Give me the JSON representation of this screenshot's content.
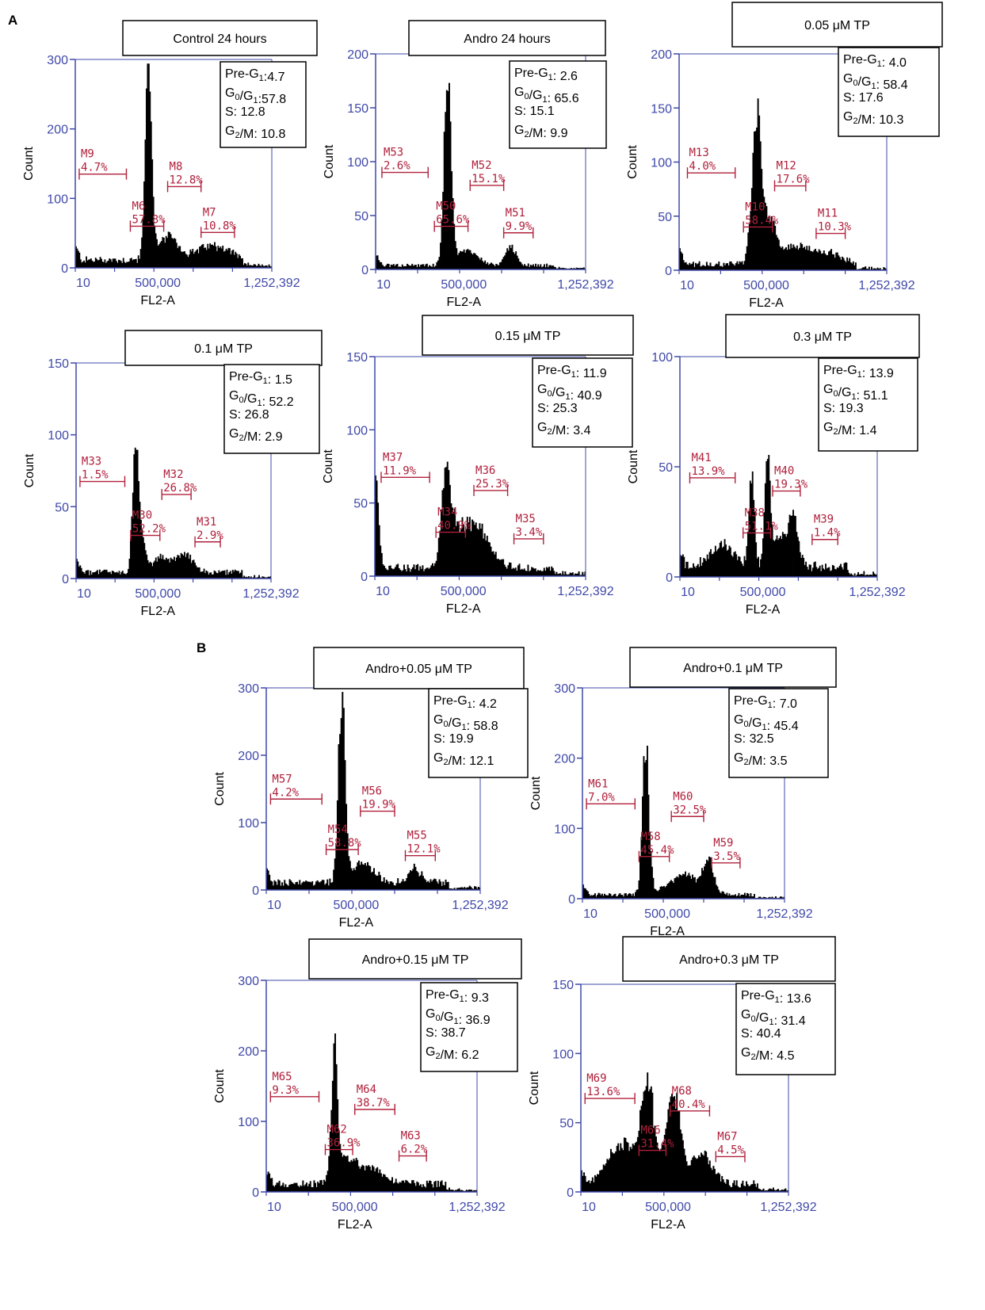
{
  "panel_labels": {
    "a": "A",
    "b": "B"
  },
  "style": {
    "axis_color": "#3f48a8",
    "marker_color": "#b0203b",
    "histogram_color": "#000000"
  },
  "chart_data": [
    {
      "type": "histogram",
      "title": "Control 24 hours",
      "xlabel": "FL2-A",
      "ylabel": "Count",
      "xtick_labels": [
        "10",
        "500,000",
        "1,252,392"
      ],
      "ylim": [
        0,
        300
      ],
      "yticks": [
        0,
        100,
        200,
        300
      ],
      "stats": [
        "Pre-G1:4.7",
        "G0/G1:57.8",
        "S: 12.8",
        "G2/M: 10.8"
      ],
      "markers": [
        {
          "name": "M9",
          "pct": "4.7%",
          "range": [
            0.02,
            0.26
          ],
          "level": 0.45
        },
        {
          "name": "M6",
          "pct": "57.8%",
          "range": [
            0.28,
            0.45
          ],
          "level": 0.2
        },
        {
          "name": "M8",
          "pct": "12.8%",
          "range": [
            0.47,
            0.64
          ],
          "level": 0.39
        },
        {
          "name": "M7",
          "pct": "10.8%",
          "range": [
            0.64,
            0.81
          ],
          "level": 0.17
        }
      ],
      "peaks": [
        {
          "x": 0.37,
          "h": 0.93,
          "w": 0.016
        },
        {
          "x": 0.47,
          "h": 0.11,
          "w": 0.05
        },
        {
          "x": 0.7,
          "h": 0.07,
          "w": 0.08
        }
      ],
      "floor": 0.04,
      "tail": 0.06
    },
    {
      "type": "histogram",
      "title": "Andro 24 hours",
      "xlabel": "FL2-A",
      "ylabel": "Count",
      "xtick_labels": [
        "10",
        "500,000",
        "1,252,392"
      ],
      "ylim": [
        0,
        200
      ],
      "yticks": [
        0,
        50,
        100,
        150,
        200
      ],
      "stats": [
        "Pre-G1: 2.6",
        "G0/G1: 65.6",
        "S: 15.1",
        "G2/M: 9.9"
      ],
      "markers": [
        {
          "name": "M53",
          "pct": "2.6%",
          "range": [
            0.03,
            0.25
          ],
          "level": 0.45
        },
        {
          "name": "M50",
          "pct": "65.6%",
          "range": [
            0.28,
            0.44
          ],
          "level": 0.2
        },
        {
          "name": "M52",
          "pct": "15.1%",
          "range": [
            0.45,
            0.61
          ],
          "level": 0.39
        },
        {
          "name": "M51",
          "pct": "9.9%",
          "range": [
            0.61,
            0.75
          ],
          "level": 0.17
        }
      ],
      "peaks": [
        {
          "x": 0.34,
          "h": 0.91,
          "w": 0.016
        },
        {
          "x": 0.43,
          "h": 0.07,
          "w": 0.05
        },
        {
          "x": 0.64,
          "h": 0.09,
          "w": 0.025
        }
      ],
      "floor": 0.02,
      "tail": 0.05
    },
    {
      "type": "histogram",
      "title": "0.05 μM TP",
      "xlabel": "FL2-A",
      "ylabel": "Count",
      "xtick_labels": [
        "10",
        "500,000",
        "1,252,392"
      ],
      "ylim": [
        0,
        200
      ],
      "yticks": [
        0,
        50,
        100,
        150,
        200
      ],
      "stats": [
        "Pre-G1: 4.0",
        "G0/G1: 58.4",
        "S: 17.6",
        "G2/M: 10.3"
      ],
      "markers": [
        {
          "name": "M13",
          "pct": "4.0%",
          "range": [
            0.04,
            0.27
          ],
          "level": 0.45
        },
        {
          "name": "M10",
          "pct": "58.4%",
          "range": [
            0.31,
            0.45
          ],
          "level": 0.2
        },
        {
          "name": "M12",
          "pct": "17.6%",
          "range": [
            0.46,
            0.61
          ],
          "level": 0.39
        },
        {
          "name": "M11",
          "pct": "10.3%",
          "range": [
            0.66,
            0.8
          ],
          "level": 0.17
        }
      ],
      "peaks": [
        {
          "x": 0.37,
          "h": 0.66,
          "w": 0.022
        },
        {
          "x": 0.43,
          "h": 0.2,
          "w": 0.03
        },
        {
          "x": 0.56,
          "h": 0.08,
          "w": 0.07
        },
        {
          "x": 0.72,
          "h": 0.05,
          "w": 0.06
        }
      ],
      "floor": 0.03,
      "tail": 0.06
    },
    {
      "type": "histogram",
      "title": "0.1 μM TP",
      "xlabel": "FL2-A",
      "ylabel": "Count",
      "xtick_labels": [
        "10",
        "500,000",
        "1,252,392"
      ],
      "ylim": [
        0,
        150
      ],
      "yticks": [
        0,
        50,
        100,
        150
      ],
      "stats": [
        "Pre-G1: 1.5",
        "G0/G1: 52.2",
        "S: 26.8",
        "G2/M: 2.9"
      ],
      "markers": [
        {
          "name": "M33",
          "pct": "1.5%",
          "range": [
            0.02,
            0.25
          ],
          "level": 0.45
        },
        {
          "name": "M30",
          "pct": "52.2%",
          "range": [
            0.28,
            0.43
          ],
          "level": 0.2
        },
        {
          "name": "M32",
          "pct": "26.8%",
          "range": [
            0.44,
            0.59
          ],
          "level": 0.39
        },
        {
          "name": "M31",
          "pct": "2.9%",
          "range": [
            0.61,
            0.74
          ],
          "level": 0.17
        }
      ],
      "peaks": [
        {
          "x": 0.3,
          "h": 0.56,
          "w": 0.014
        },
        {
          "x": 0.33,
          "h": 0.16,
          "w": 0.02
        },
        {
          "x": 0.44,
          "h": 0.07,
          "w": 0.05
        },
        {
          "x": 0.56,
          "h": 0.08,
          "w": 0.04
        }
      ],
      "floor": 0.03,
      "tail": 0.05
    },
    {
      "type": "histogram",
      "title": "0.15 μM TP",
      "xlabel": "FL2-A",
      "ylabel": "Count",
      "xtick_labels": [
        "10",
        "500,000",
        "1,252,392"
      ],
      "ylim": [
        0,
        150
      ],
      "yticks": [
        0,
        50,
        100,
        150
      ],
      "stats": [
        "Pre-G1: 11.9",
        "G0/G1: 40.9",
        "S: 25.3",
        "G2/M: 3.4"
      ],
      "markers": [
        {
          "name": "M37",
          "pct": "11.9%",
          "range": [
            0.03,
            0.26
          ],
          "level": 0.45
        },
        {
          "name": "M34",
          "pct": "40.9%",
          "range": [
            0.29,
            0.43
          ],
          "level": 0.2
        },
        {
          "name": "M36",
          "pct": "25.3%",
          "range": [
            0.47,
            0.63
          ],
          "level": 0.39
        },
        {
          "name": "M35",
          "pct": "3.4%",
          "range": [
            0.66,
            0.8
          ],
          "level": 0.17
        }
      ],
      "peaks": [
        {
          "x": 0.33,
          "h": 0.33,
          "w": 0.018
        },
        {
          "x": 0.46,
          "h": 0.2,
          "w": 0.07
        },
        {
          "x": 0.36,
          "h": 0.15,
          "w": 0.03
        },
        {
          "x": 0.0,
          "h": 0.38,
          "w": 0.015
        }
      ],
      "floor": 0.04,
      "tail": 0.07
    },
    {
      "type": "histogram",
      "title": "0.3 μM TP",
      "xlabel": "FL2-A",
      "ylabel": "Count",
      "xtick_labels": [
        "10",
        "500,000",
        "1,252,392"
      ],
      "ylim": [
        0,
        100
      ],
      "yticks": [
        0,
        50,
        100
      ],
      "stats": [
        "Pre-G1: 13.9",
        "G0/G1: 51.1",
        "S: 19.3",
        "G2/M: 1.4"
      ],
      "markers": [
        {
          "name": "M41",
          "pct": "13.9%",
          "range": [
            0.05,
            0.28
          ],
          "level": 0.45
        },
        {
          "name": "M38",
          "pct": "51.1%",
          "range": [
            0.32,
            0.46
          ],
          "level": 0.2
        },
        {
          "name": "M40",
          "pct": "19.3%",
          "range": [
            0.47,
            0.61
          ],
          "level": 0.39
        },
        {
          "name": "M39",
          "pct": "1.4%",
          "range": [
            0.67,
            0.8
          ],
          "level": 0.17
        }
      ],
      "peaks": [
        {
          "x": 0.36,
          "h": 0.43,
          "w": 0.014
        },
        {
          "x": 0.44,
          "h": 0.5,
          "w": 0.014
        },
        {
          "x": 0.57,
          "h": 0.22,
          "w": 0.025
        },
        {
          "x": 0.21,
          "h": 0.1,
          "w": 0.06
        },
        {
          "x": 0.5,
          "h": 0.12,
          "w": 0.03
        }
      ],
      "floor": 0.05,
      "tail": 0.06
    },
    {
      "type": "histogram",
      "title": "Andro+0.05 μM TP",
      "xlabel": "FL2-A",
      "ylabel": "Count",
      "xtick_labels": [
        "10",
        "500,000",
        "1,252,392"
      ],
      "ylim": [
        0,
        300
      ],
      "yticks": [
        0,
        100,
        200,
        300
      ],
      "stats": [
        "Pre-G1: 4.2",
        "G0/G1: 58.8",
        "S: 19.9",
        "G2/M: 12.1"
      ],
      "markers": [
        {
          "name": "M57",
          "pct": "4.2%",
          "range": [
            0.02,
            0.26
          ],
          "level": 0.45
        },
        {
          "name": "M54",
          "pct": "58.8%",
          "range": [
            0.28,
            0.43
          ],
          "level": 0.2
        },
        {
          "name": "M56",
          "pct": "19.9%",
          "range": [
            0.44,
            0.6
          ],
          "level": 0.39
        },
        {
          "name": "M55",
          "pct": "12.1%",
          "range": [
            0.65,
            0.79
          ],
          "level": 0.17
        }
      ],
      "peaks": [
        {
          "x": 0.35,
          "h": 0.9,
          "w": 0.016
        },
        {
          "x": 0.45,
          "h": 0.09,
          "w": 0.05
        },
        {
          "x": 0.69,
          "h": 0.07,
          "w": 0.03
        }
      ],
      "floor": 0.04,
      "tail": 0.06
    },
    {
      "type": "histogram",
      "title": "Andro+0.1 μM TP",
      "xlabel": "FL2-A",
      "ylabel": "Count",
      "xtick_labels": [
        "10",
        "500,000",
        "1,252,392"
      ],
      "ylim": [
        0,
        300
      ],
      "yticks": [
        0,
        100,
        200,
        300
      ],
      "stats": [
        "Pre-G1: 7.0",
        "G0/G1: 45.4",
        "S: 32.5",
        "G2/M: 3.5"
      ],
      "markers": [
        {
          "name": "M61",
          "pct": "7.0%",
          "range": [
            0.02,
            0.26
          ],
          "level": 0.45
        },
        {
          "name": "M58",
          "pct": "45.4%",
          "range": [
            0.28,
            0.43
          ],
          "level": 0.2
        },
        {
          "name": "M60",
          "pct": "32.5%",
          "range": [
            0.44,
            0.6
          ],
          "level": 0.39
        },
        {
          "name": "M59",
          "pct": "3.5%",
          "range": [
            0.64,
            0.78
          ],
          "level": 0.17
        }
      ],
      "peaks": [
        {
          "x": 0.31,
          "h": 0.72,
          "w": 0.016
        },
        {
          "x": 0.5,
          "h": 0.09,
          "w": 0.08
        },
        {
          "x": 0.62,
          "h": 0.14,
          "w": 0.025
        }
      ],
      "floor": 0.02,
      "tail": 0.05
    },
    {
      "type": "histogram",
      "title": "Andro+0.15 μM TP",
      "xlabel": "FL2-A",
      "ylabel": "Count",
      "xtick_labels": [
        "10",
        "500,000",
        "1,252,392"
      ],
      "ylim": [
        0,
        300
      ],
      "yticks": [
        0,
        100,
        200,
        300
      ],
      "stats": [
        "Pre-G1: 9.3",
        "G0/G1: 36.9",
        "S: 38.7",
        "G2/M: 6.2"
      ],
      "markers": [
        {
          "name": "M65",
          "pct": "9.3%",
          "range": [
            0.02,
            0.25
          ],
          "level": 0.45
        },
        {
          "name": "M62",
          "pct": "36.9%",
          "range": [
            0.28,
            0.41
          ],
          "level": 0.2
        },
        {
          "name": "M64",
          "pct": "38.7%",
          "range": [
            0.42,
            0.61
          ],
          "level": 0.39
        },
        {
          "name": "M63",
          "pct": "6.2%",
          "range": [
            0.63,
            0.76
          ],
          "level": 0.17
        }
      ],
      "peaks": [
        {
          "x": 0.32,
          "h": 0.6,
          "w": 0.014
        },
        {
          "x": 0.46,
          "h": 0.09,
          "w": 0.08
        },
        {
          "x": 0.37,
          "h": 0.08,
          "w": 0.03
        }
      ],
      "floor": 0.04,
      "tail": 0.06
    },
    {
      "type": "histogram",
      "title": "Andro+0.3 μM TP",
      "xlabel": "FL2-A",
      "ylabel": "Count",
      "xtick_labels": [
        "10",
        "500,000",
        "1,252,392"
      ],
      "ylim": [
        0,
        150
      ],
      "yticks": [
        0,
        50,
        100,
        150
      ],
      "stats": [
        "Pre-G1: 13.6",
        "G0/G1: 31.4",
        "S: 40.4",
        "G2/M: 4.5"
      ],
      "markers": [
        {
          "name": "M69",
          "pct": "13.6%",
          "range": [
            0.02,
            0.26
          ],
          "level": 0.45
        },
        {
          "name": "M66",
          "pct": "31.4%",
          "range": [
            0.28,
            0.41
          ],
          "level": 0.2
        },
        {
          "name": "M68",
          "pct": "40.4%",
          "range": [
            0.43,
            0.62
          ],
          "level": 0.39
        },
        {
          "name": "M67",
          "pct": "4.5%",
          "range": [
            0.65,
            0.79
          ],
          "level": 0.17
        }
      ],
      "peaks": [
        {
          "x": 0.32,
          "h": 0.44,
          "w": 0.03
        },
        {
          "x": 0.44,
          "h": 0.42,
          "w": 0.035
        },
        {
          "x": 0.2,
          "h": 0.2,
          "w": 0.07
        },
        {
          "x": 0.58,
          "h": 0.14,
          "w": 0.05
        }
      ],
      "floor": 0.04,
      "tail": 0.06
    }
  ]
}
